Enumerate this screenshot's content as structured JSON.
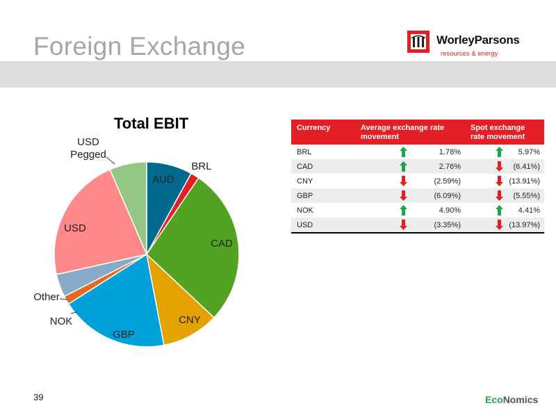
{
  "slide": {
    "title": "Foreign Exchange",
    "page_number": "39"
  },
  "logo": {
    "name": "WorleyParsons",
    "tagline": "resources & energy"
  },
  "footer_brand": {
    "part1": "Eco",
    "part2": "Nomics"
  },
  "chart_data": {
    "type": "pie",
    "title": "Total EBIT",
    "slices": [
      {
        "label": "AUD",
        "value": 8,
        "color": "#006a8e"
      },
      {
        "label": "BRL",
        "value": 1.5,
        "color": "#e31e24"
      },
      {
        "label": "CAD",
        "value": 27.5,
        "color": "#52a321"
      },
      {
        "label": "CNY",
        "value": 10,
        "color": "#e4a200"
      },
      {
        "label": "GBP",
        "value": 19,
        "color": "#00a0d8"
      },
      {
        "label": "NOK",
        "value": 1.5,
        "color": "#e56a1c"
      },
      {
        "label": "Other",
        "value": 4,
        "color": "#86abc8"
      },
      {
        "label": "USD",
        "value": 22,
        "color": "#ff8888"
      },
      {
        "label": "USD Pegged",
        "value": 6.5,
        "color": "#96c684"
      }
    ]
  },
  "table": {
    "headers": [
      "Currency",
      "Average exchange rate movement",
      "Spot exchange rate movement"
    ],
    "rows": [
      {
        "currency": "BRL",
        "avg": "1.78%",
        "avg_dir": "up",
        "spot": "5.97%",
        "spot_dir": "up"
      },
      {
        "currency": "CAD",
        "avg": "2.76%",
        "avg_dir": "up",
        "spot": "(6.41%)",
        "spot_dir": "down"
      },
      {
        "currency": "CNY",
        "avg": "(2.59%)",
        "avg_dir": "down",
        "spot": "(13.91%)",
        "spot_dir": "down"
      },
      {
        "currency": "GBP",
        "avg": "(6.09%)",
        "avg_dir": "down",
        "spot": "(5.55%)",
        "spot_dir": "down"
      },
      {
        "currency": "NOK",
        "avg": "4.90%",
        "avg_dir": "up",
        "spot": "4.41%",
        "spot_dir": "up"
      },
      {
        "currency": "USD",
        "avg": "(3.35%)",
        "avg_dir": "down",
        "spot": "(13.97%)",
        "spot_dir": "down"
      }
    ]
  },
  "colors": {
    "up": "#1aa64a",
    "down": "#e31e24",
    "header": "#e31e24"
  }
}
